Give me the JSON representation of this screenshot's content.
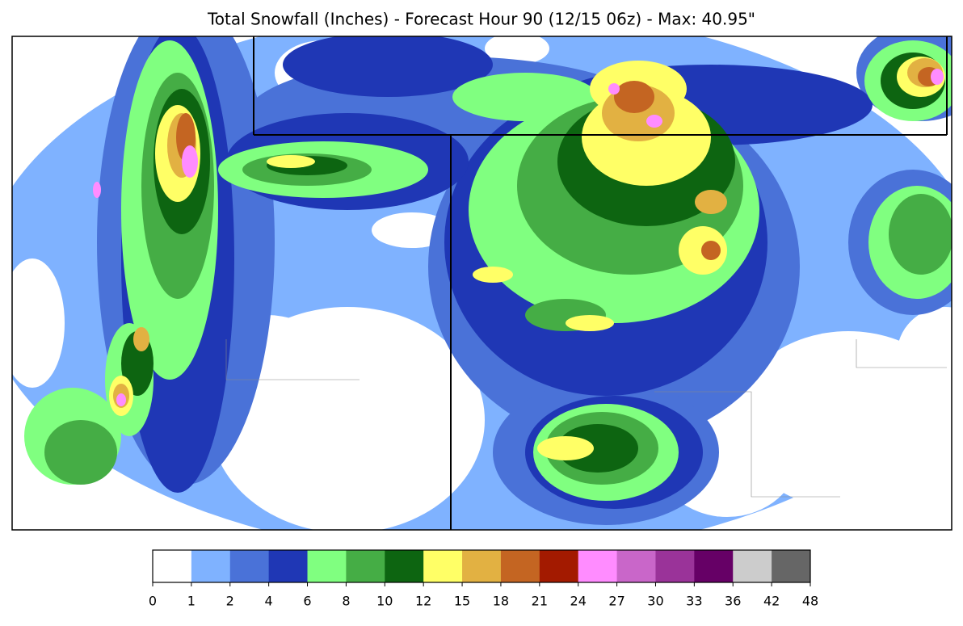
{
  "title": "Total Snowfall (Inches) - Forecast Hour 90 (12/15 06z) - Max: 40.95\"",
  "colorbar": {
    "ticks": [
      0,
      1,
      2,
      4,
      6,
      8,
      10,
      12,
      15,
      18,
      21,
      24,
      27,
      30,
      33,
      36,
      42,
      48
    ],
    "colors": [
      "#ffffff",
      "#7fb2ff",
      "#4a72d8",
      "#1f37b5",
      "#80ff80",
      "#45ad45",
      "#0d6511",
      "#ffff66",
      "#e2b142",
      "#c46522",
      "#a31a00",
      "#ff8cff",
      "#c966c9",
      "#9a3399",
      "#660066",
      "#cccccc",
      "#666666"
    ]
  }
}
